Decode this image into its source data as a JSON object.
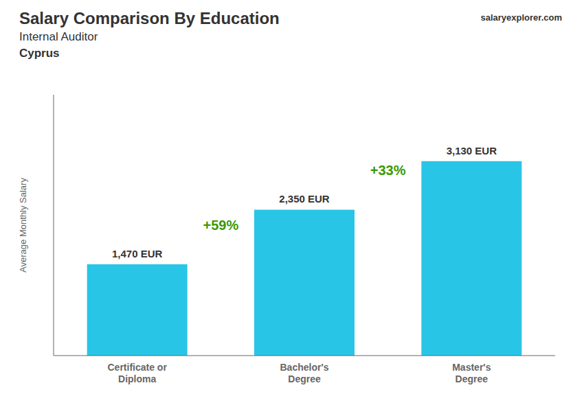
{
  "chart_data": {
    "type": "bar",
    "title": "Salary Comparison By Education",
    "subtitle": [
      "Internal Auditor",
      "Cyprus"
    ],
    "source": "salaryexplorer.com",
    "categories": [
      "Certificate or\nDiploma",
      "Bachelor's\nDegree",
      "Master's\nDegree"
    ],
    "values": [
      1470,
      2350,
      3130
    ],
    "value_labels": [
      "1,470 EUR",
      "2,350 EUR",
      "3,130 EUR"
    ],
    "data_labels": true,
    "color": "#29c5e6",
    "ylabel": "Average Monthly Salary",
    "ylim": [
      0,
      4200
    ],
    "tick_labels": "x",
    "grid": false,
    "annotations": [
      "+59%",
      "+33%"
    ]
  }
}
